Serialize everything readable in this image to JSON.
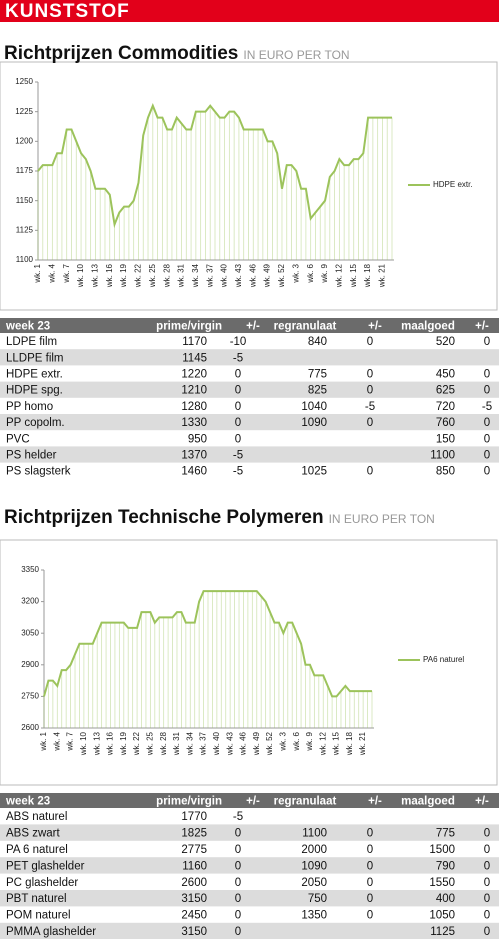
{
  "header": {
    "section": "KUNSTSTOF"
  },
  "sections": [
    {
      "title": "Richtprijzen Commodities",
      "unit": "IN EURO PER TON",
      "table": {
        "columns": [
          "week 23",
          "prime/virgin",
          "+/-",
          "regranulaat",
          "+/-",
          "maalgoed",
          "+/-"
        ],
        "rows": [
          [
            "LDPE film",
            1170,
            -10,
            840,
            0,
            520,
            0
          ],
          [
            "LLDPE film",
            1145,
            -5,
            null,
            null,
            null,
            null
          ],
          [
            "HDPE extr.",
            1220,
            0,
            775,
            0,
            450,
            0
          ],
          [
            "HDPE spg.",
            1210,
            0,
            825,
            0,
            625,
            0
          ],
          [
            "PP homo",
            1280,
            0,
            1040,
            -5,
            720,
            -5
          ],
          [
            "PP copolm.",
            1330,
            0,
            1090,
            0,
            760,
            0
          ],
          [
            "PVC",
            950,
            0,
            null,
            null,
            150,
            0
          ],
          [
            "PS helder",
            1370,
            -5,
            null,
            null,
            1100,
            0
          ],
          [
            "PS slagsterk",
            1460,
            -5,
            1025,
            0,
            850,
            0
          ]
        ]
      }
    },
    {
      "title": "Richtprijzen Technische Polymeren",
      "unit": "IN EURO PER TON",
      "table": {
        "columns": [
          "week 23",
          "prime/virgin",
          "+/-",
          "regranulaat",
          "+/-",
          "maalgoed",
          "+/-"
        ],
        "rows": [
          [
            "ABS naturel",
            1770,
            -5,
            null,
            null,
            null,
            null
          ],
          [
            "ABS zwart",
            1825,
            0,
            1100,
            0,
            775,
            0
          ],
          [
            "PA 6 naturel",
            2775,
            0,
            2000,
            0,
            1500,
            0
          ],
          [
            "PET glashelder",
            1160,
            0,
            1090,
            0,
            790,
            0
          ],
          [
            "PC glashelder",
            2600,
            0,
            2050,
            0,
            1550,
            0
          ],
          [
            "PBT naturel",
            3150,
            0,
            750,
            0,
            400,
            0
          ],
          [
            "POM naturel",
            2450,
            0,
            1350,
            0,
            1050,
            0
          ],
          [
            "PMMA glashelder",
            3150,
            0,
            null,
            null,
            1125,
            0
          ]
        ]
      }
    }
  ],
  "chart_data": [
    {
      "type": "line",
      "legend": "right",
      "categories": [
        "wk. 1",
        null,
        null,
        "wk. 4",
        null,
        null,
        "wk. 7",
        null,
        null,
        "wk. 10",
        null,
        null,
        "wk. 13",
        null,
        null,
        "wk. 16",
        null,
        null,
        "wk. 19",
        null,
        null,
        "wk. 22",
        null,
        null,
        "wk. 25",
        null,
        null,
        "wk. 28",
        null,
        null,
        "wk. 31",
        null,
        null,
        "wk. 34",
        null,
        null,
        "wk. 37",
        null,
        null,
        "wk. 40",
        null,
        null,
        "wk. 43",
        null,
        null,
        "wk. 46",
        null,
        null,
        "wk. 49",
        null,
        null,
        "wk. 52",
        null,
        null,
        "wk. 3",
        null,
        null,
        "wk. 6",
        null,
        null,
        "wk. 9",
        null,
        null,
        "wk. 12",
        null,
        null,
        "wk. 15",
        null,
        null,
        "wk. 18",
        null,
        null,
        "wk. 21",
        null,
        null
      ],
      "series": [
        {
          "name": "HDPE extr.",
          "color": "#9cc35b",
          "values": [
            1175,
            1180,
            1180,
            1180,
            1190,
            1190,
            1210,
            1210,
            1200,
            1190,
            1185,
            1175,
            1160,
            1160,
            1160,
            1155,
            1130,
            1140,
            1145,
            1145,
            1150,
            1165,
            1205,
            1220,
            1230,
            1220,
            1220,
            1210,
            1210,
            1220,
            1215,
            1210,
            1210,
            1225,
            1225,
            1225,
            1230,
            1225,
            1220,
            1220,
            1225,
            1225,
            1220,
            1210,
            1210,
            1210,
            1210,
            1210,
            1200,
            1200,
            1190,
            1160,
            1180,
            1180,
            1175,
            1160,
            1160,
            1135,
            1140,
            1145,
            1150,
            1170,
            1175,
            1185,
            1180,
            1180,
            1185,
            1185,
            1190,
            1220,
            1220,
            1220,
            1220,
            1220,
            1220
          ]
        }
      ],
      "ylim": [
        1100,
        1250
      ],
      "yticks": [
        1100,
        1125,
        1150,
        1175,
        1200,
        1225,
        1250
      ]
    },
    {
      "type": "line",
      "legend": "right",
      "categories": [
        "wk. 1",
        null,
        null,
        "wk. 4",
        null,
        null,
        "wk. 7",
        null,
        null,
        "wk. 10",
        null,
        null,
        "wk. 13",
        null,
        null,
        "wk. 16",
        null,
        null,
        "wk. 19",
        null,
        null,
        "wk. 22",
        null,
        null,
        "wk. 25",
        null,
        null,
        "wk. 28",
        null,
        null,
        "wk. 31",
        null,
        null,
        "wk. 34",
        null,
        null,
        "wk. 37",
        null,
        null,
        "wk. 40",
        null,
        null,
        "wk. 43",
        null,
        null,
        "wk. 46",
        null,
        null,
        "wk. 49",
        null,
        null,
        "wk. 52",
        null,
        null,
        "wk. 3",
        null,
        null,
        "wk. 6",
        null,
        null,
        "wk. 9",
        null,
        null,
        "wk. 12",
        null,
        null,
        "wk. 15",
        null,
        null,
        "wk. 18",
        null,
        null,
        "wk. 21",
        null,
        null
      ],
      "series": [
        {
          "name": "PA6 naturel",
          "color": "#9cc35b",
          "values": [
            2750,
            2825,
            2825,
            2800,
            2875,
            2875,
            2900,
            2950,
            3000,
            3000,
            3000,
            3000,
            3050,
            3100,
            3100,
            3100,
            3100,
            3100,
            3100,
            3075,
            3075,
            3075,
            3150,
            3150,
            3150,
            3100,
            3125,
            3125,
            3125,
            3125,
            3150,
            3150,
            3100,
            3100,
            3100,
            3200,
            3250,
            3250,
            3250,
            3250,
            3250,
            3250,
            3250,
            3250,
            3250,
            3250,
            3250,
            3250,
            3250,
            3225,
            3200,
            3150,
            3100,
            3100,
            3050,
            3100,
            3100,
            3050,
            3000,
            2900,
            2900,
            2850,
            2850,
            2850,
            2800,
            2750,
            2750,
            2775,
            2800,
            2775,
            2775,
            2775,
            2775,
            2775,
            2775
          ]
        }
      ],
      "ylim": [
        2600,
        3350
      ],
      "yticks": [
        2600,
        2750,
        2900,
        3050,
        3200,
        3350
      ]
    }
  ]
}
